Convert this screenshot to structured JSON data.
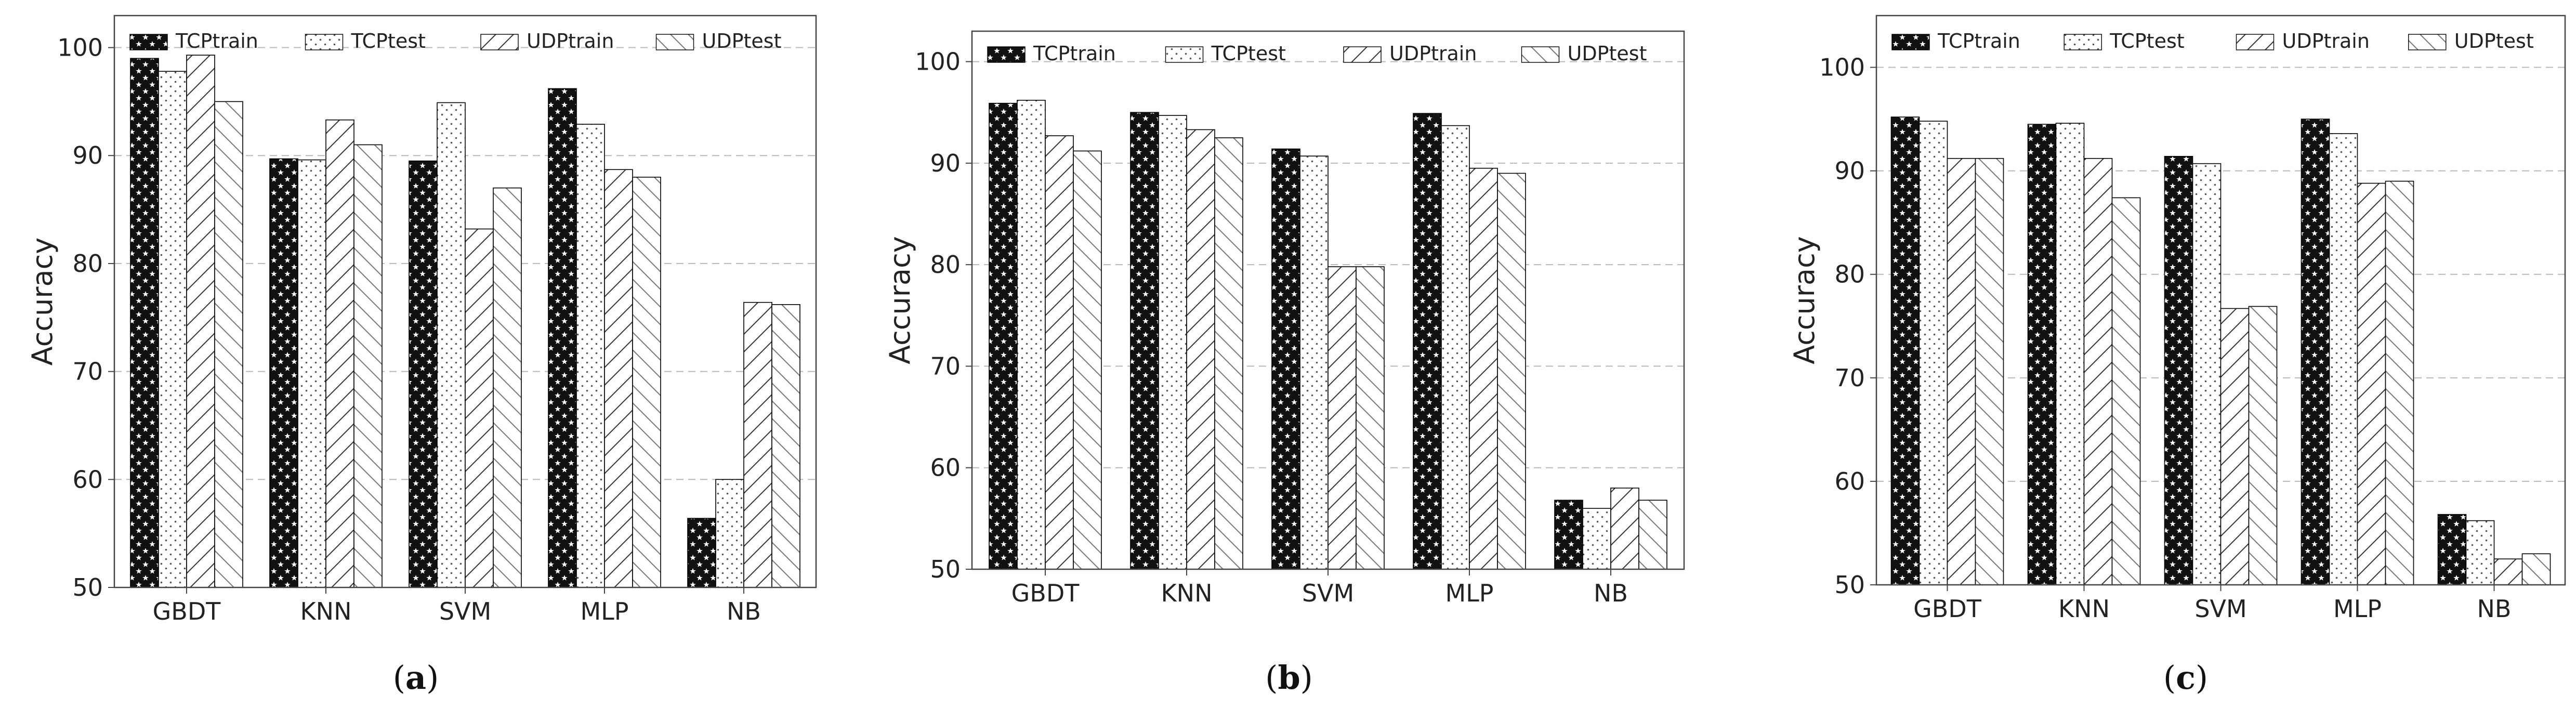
{
  "colors": {
    "bar_stroke": "#000000",
    "grid": "#b8b8b8",
    "TCPtrain_fill": "#111111",
    "frame": "#444444"
  },
  "chart_data": [
    {
      "panel": "(a)",
      "panel_letter": "a",
      "type": "bar",
      "title": "",
      "xlabel": "",
      "ylabel": "Accuracy",
      "ylim": [
        50,
        102
      ],
      "yticks": [
        50,
        60,
        70,
        80,
        90,
        100
      ],
      "grid": "horizontal dashed",
      "legend_placement": "top",
      "categories": [
        "GBDT",
        "KNN",
        "SVM",
        "MLP",
        "NB"
      ],
      "series": [
        {
          "name": "TCPtrain",
          "pattern": "stars",
          "values": [
            99.0,
            89.7,
            89.5,
            96.2,
            56.4
          ]
        },
        {
          "name": "TCPtest",
          "pattern": "dots",
          "values": [
            97.8,
            89.6,
            94.9,
            92.9,
            60.0
          ]
        },
        {
          "name": "UDPtrain",
          "pattern": "forward-hatch",
          "values": [
            99.3,
            93.3,
            83.2,
            88.7,
            76.4
          ]
        },
        {
          "name": "UDPtest",
          "pattern": "back-hatch",
          "values": [
            95.0,
            91.0,
            87.0,
            88.0,
            76.2
          ]
        }
      ]
    },
    {
      "panel": "(b)",
      "panel_letter": "b",
      "type": "bar",
      "title": "",
      "xlabel": "",
      "ylabel": "Accuracy",
      "ylim": [
        50,
        103
      ],
      "yticks": [
        50,
        60,
        70,
        80,
        90,
        100
      ],
      "grid": "horizontal dashed",
      "legend_placement": "top",
      "categories": [
        "GBDT",
        "KNN",
        "SVM",
        "MLP",
        "NB"
      ],
      "series": [
        {
          "name": "TCPtrain",
          "pattern": "stars",
          "values": [
            95.9,
            95.0,
            91.4,
            94.9,
            56.8
          ]
        },
        {
          "name": "TCPtest",
          "pattern": "dots",
          "values": [
            96.2,
            94.7,
            90.7,
            93.7,
            56.0
          ]
        },
        {
          "name": "UDPtrain",
          "pattern": "forward-hatch",
          "values": [
            92.7,
            93.3,
            79.8,
            89.5,
            58.0
          ]
        },
        {
          "name": "UDPtest",
          "pattern": "back-hatch",
          "values": [
            91.2,
            92.5,
            79.8,
            89.0,
            56.8
          ]
        }
      ]
    },
    {
      "panel": "(c)",
      "panel_letter": "c",
      "type": "bar",
      "title": "",
      "xlabel": "",
      "ylabel": "Accuracy",
      "ylim": [
        50,
        105
      ],
      "yticks": [
        50,
        60,
        70,
        80,
        90,
        100
      ],
      "grid": "horizontal dashed",
      "legend_placement": "top",
      "categories": [
        "GBDT",
        "KNN",
        "SVM",
        "MLP",
        "NB"
      ],
      "series": [
        {
          "name": "TCPtrain",
          "pattern": "stars",
          "values": [
            95.2,
            94.5,
            91.4,
            95.0,
            56.8
          ]
        },
        {
          "name": "TCPtest",
          "pattern": "dots",
          "values": [
            94.8,
            94.6,
            90.7,
            93.6,
            56.2
          ]
        },
        {
          "name": "UDPtrain",
          "pattern": "forward-hatch",
          "values": [
            91.2,
            91.2,
            76.7,
            88.8,
            52.5
          ]
        },
        {
          "name": "UDPtest",
          "pattern": "back-hatch",
          "values": [
            91.2,
            87.4,
            76.9,
            89.0,
            53.0
          ]
        }
      ]
    }
  ]
}
